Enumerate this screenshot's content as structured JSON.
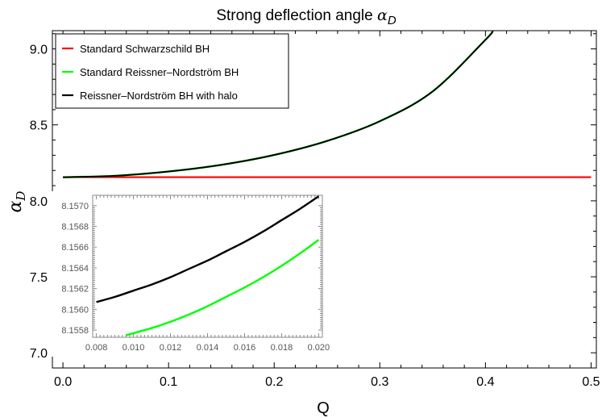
{
  "chart_data": [
    {
      "type": "line",
      "title": "Strong deflection angle",
      "title_symbol": "α",
      "title_subscript": "D",
      "xlabel": "Q",
      "ylabel_symbol": "α",
      "ylabel_subscript": "D",
      "xlim": [
        -0.01,
        0.505
      ],
      "ylim": [
        6.9,
        9.12
      ],
      "x_ticks": [
        "0.0",
        "0.1",
        "0.2",
        "0.3",
        "0.4",
        "0.5"
      ],
      "y_ticks": [
        "7.0",
        "7.5",
        "8.0",
        "8.5",
        "9.0"
      ],
      "legend_position": "top-left",
      "series": [
        {
          "name": "Standard Schwarzschild BH",
          "color": "#ff0000",
          "x": [
            0.0,
            0.5
          ],
          "y": [
            8.1556,
            8.1556
          ]
        },
        {
          "name": "Standard Reissner–Nordström BH",
          "color": "#00ff00",
          "x": [
            0.0,
            0.05,
            0.1,
            0.15,
            0.2,
            0.25,
            0.3,
            0.35,
            0.4,
            0.407
          ],
          "y": [
            8.1556,
            8.165,
            8.193,
            8.237,
            8.302,
            8.394,
            8.524,
            8.72,
            9.06,
            9.12
          ]
        },
        {
          "name": "Reissner–Nordström BH with halo",
          "color": "#000000",
          "x": [
            0.0,
            0.05,
            0.1,
            0.15,
            0.2,
            0.25,
            0.3,
            0.35,
            0.4,
            0.407
          ],
          "y": [
            8.1556,
            8.165,
            8.193,
            8.237,
            8.302,
            8.394,
            8.524,
            8.72,
            9.06,
            9.12
          ]
        }
      ]
    },
    {
      "type": "line",
      "placement": "inset",
      "xlim": [
        0.0078,
        0.0202
      ],
      "ylim": [
        8.15573,
        8.1571
      ],
      "x_ticks": [
        "0.008",
        "0.010",
        "0.012",
        "0.014",
        "0.016",
        "0.018",
        "0.020"
      ],
      "y_ticks": [
        "8.1558",
        "8.1560",
        "8.1562",
        "8.1564",
        "8.1566",
        "8.1568",
        "8.1570"
      ],
      "series": [
        {
          "color": "#00ff00",
          "x": [
            0.0096,
            0.011,
            0.012,
            0.013,
            0.014,
            0.015,
            0.016,
            0.017,
            0.018,
            0.019,
            0.02
          ],
          "y": [
            8.15575,
            8.15582,
            8.15588,
            8.15595,
            8.15603,
            8.15612,
            8.15621,
            8.15631,
            8.15642,
            8.15654,
            8.15667
          ]
        },
        {
          "color": "#000000",
          "x": [
            0.008,
            0.009,
            0.01,
            0.011,
            0.012,
            0.013,
            0.014,
            0.015,
            0.016,
            0.017,
            0.018,
            0.019,
            0.02
          ],
          "y": [
            8.15607,
            8.15612,
            8.15618,
            8.15624,
            8.15631,
            8.15639,
            8.15647,
            8.15656,
            8.15665,
            8.15675,
            8.15686,
            8.15697,
            8.15709
          ]
        }
      ]
    }
  ]
}
